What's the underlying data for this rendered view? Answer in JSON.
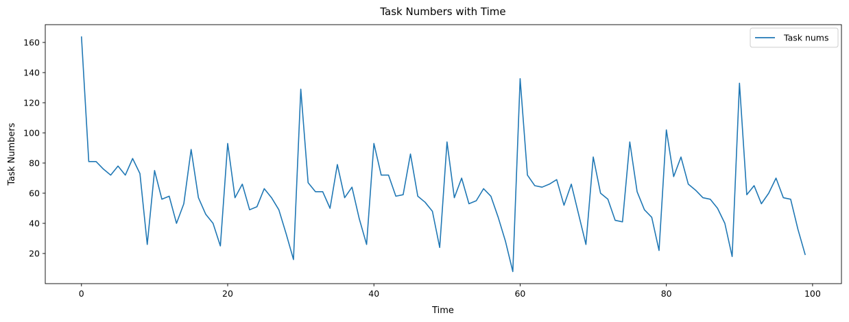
{
  "chart_data": {
    "type": "line",
    "title": "Task Numbers with Time",
    "xlabel": "Time",
    "ylabel": "Task Numbers",
    "xlim": [
      -4.95,
      103.95
    ],
    "ylim": [
      0,
      171.8
    ],
    "xticks": [
      0,
      20,
      40,
      60,
      80,
      100
    ],
    "yticks": [
      20,
      40,
      60,
      80,
      100,
      120,
      140,
      160
    ],
    "grid": false,
    "legend": {
      "position": "top-right",
      "entries": [
        "Task nums"
      ]
    },
    "series": [
      {
        "name": "Task nums",
        "color": "#1f77b4",
        "x": [
          0,
          1,
          2,
          3,
          4,
          5,
          6,
          7,
          8,
          9,
          10,
          11,
          12,
          13,
          14,
          15,
          16,
          17,
          18,
          19,
          20,
          21,
          22,
          23,
          24,
          25,
          26,
          27,
          28,
          29,
          30,
          31,
          32,
          33,
          34,
          35,
          36,
          37,
          38,
          39,
          40,
          41,
          42,
          43,
          44,
          45,
          46,
          47,
          48,
          49,
          50,
          51,
          52,
          53,
          54,
          55,
          56,
          57,
          58,
          59,
          60,
          61,
          62,
          63,
          64,
          65,
          66,
          67,
          68,
          69,
          70,
          71,
          72,
          73,
          74,
          75,
          76,
          77,
          78,
          79,
          80,
          81,
          82,
          83,
          84,
          85,
          86,
          87,
          88,
          89,
          90,
          91,
          92,
          93,
          94,
          95,
          96,
          97,
          98,
          99
        ],
        "values": [
          164,
          81,
          81,
          76,
          72,
          78,
          72,
          83,
          73,
          26,
          75,
          56,
          58,
          40,
          53,
          89,
          57,
          46,
          40,
          25,
          93,
          57,
          66,
          49,
          51,
          63,
          57,
          49,
          33,
          16,
          129,
          67,
          61,
          61,
          50,
          79,
          57,
          64,
          43,
          26,
          93,
          72,
          72,
          58,
          59,
          86,
          58,
          54,
          48,
          24,
          94,
          57,
          70,
          53,
          55,
          63,
          58,
          44,
          28,
          8,
          136,
          72,
          65,
          64,
          66,
          69,
          52,
          66,
          46,
          26,
          84,
          60,
          56,
          42,
          41,
          94,
          61,
          49,
          44,
          22,
          102,
          71,
          84,
          66,
          62,
          57,
          56,
          50,
          40,
          18,
          133,
          59,
          65,
          53,
          60,
          70,
          57,
          56,
          36,
          19
        ]
      }
    ]
  }
}
